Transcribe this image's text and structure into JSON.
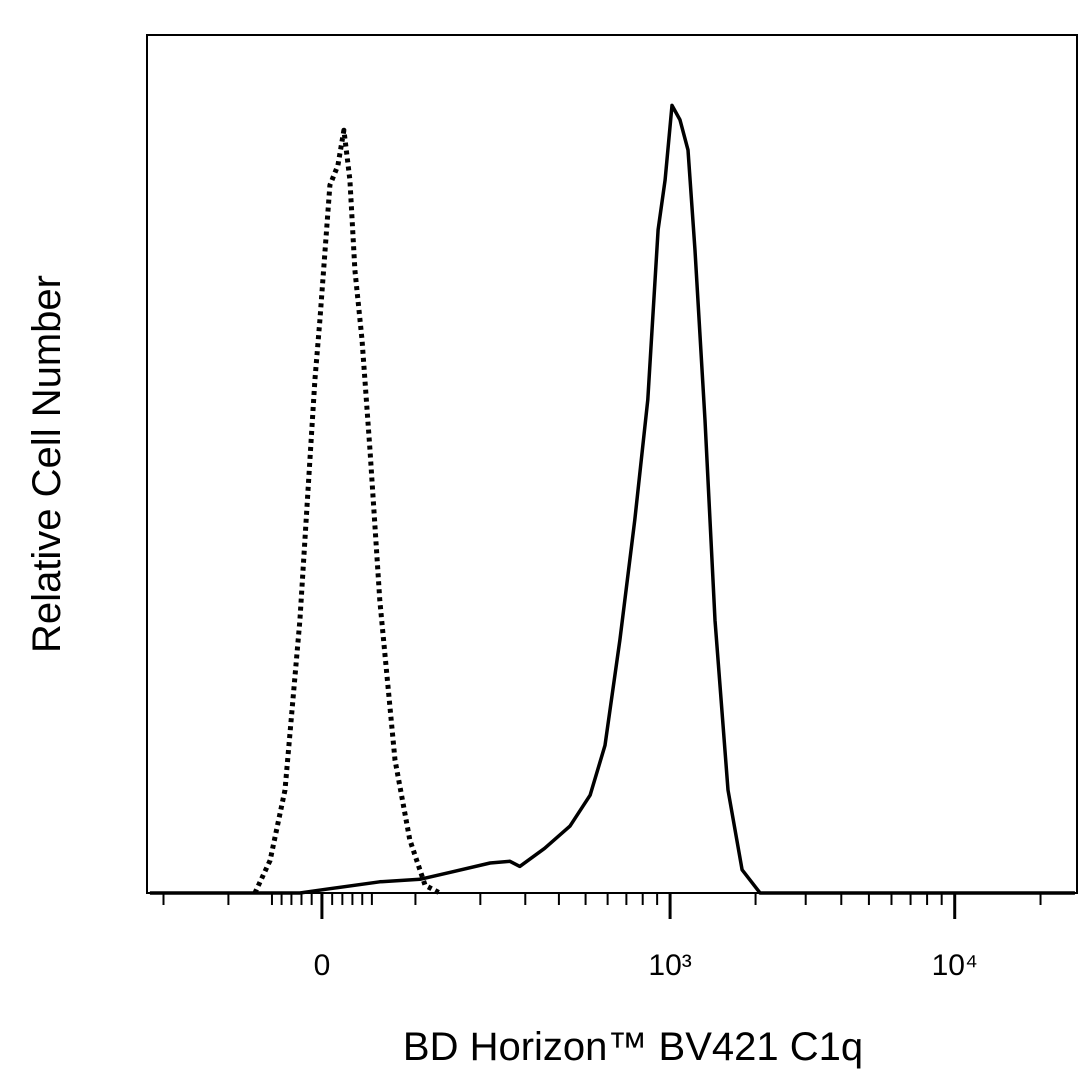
{
  "chart_data": {
    "type": "histogram-overlay",
    "x_label": "BD Horizon™ BV421 C1q",
    "y_label": "Relative Cell Number",
    "xscale": {
      "type": "asinh",
      "cofactor": 120.6
    },
    "xlim": [
      -233,
      26850
    ],
    "xticks": [
      0,
      {
        "value": 1000,
        "label": "10³"
      },
      {
        "value": 10000,
        "label": "10⁴"
      }
    ],
    "xminor_ticks": [
      -200,
      -100,
      -50,
      -40,
      -30,
      -20,
      -10,
      10,
      20,
      30,
      40,
      50,
      100,
      200,
      300,
      400,
      500,
      600,
      700,
      800,
      900,
      2000,
      3000,
      4000,
      5000,
      6000,
      7000,
      8000,
      9000,
      20000
    ],
    "ylim": [
      0,
      100
    ],
    "series": [
      {
        "color": "#000000",
        "style": "dotted",
        "x": [
          -68.5,
          -52,
          -36.5,
          -21.6,
          -6.8,
          -2,
          7.8,
          15.6,
          21.5,
          27.5,
          32.5,
          39.7,
          48,
          58.5,
          75.4,
          93,
          112.5,
          133
        ],
        "values": [
          0,
          3.8,
          12.0,
          31.8,
          59.8,
          66.8,
          82.5,
          84.8,
          88.9,
          83.1,
          72.6,
          64.5,
          51.6,
          34.1,
          15.5,
          6.2,
          0.9,
          0
        ]
      },
      {
        "color": "#000000",
        "style": "solid",
        "x": [
          -227,
          -21.6,
          7.8,
          58.5,
          105.9,
          148,
          219,
          262,
          286,
          354,
          439,
          519,
          587,
          664,
          750,
          834,
          907,
          960,
          1016,
          1084,
          1157,
          1224,
          1328,
          1440,
          1600,
          1793,
          2074,
          26400
        ],
        "values": [
          0,
          0,
          0.5,
          1.3,
          1.6,
          2.4,
          3.5,
          3.7,
          3.1,
          5.2,
          7.8,
          11.4,
          17.2,
          29.5,
          43.5,
          57.5,
          77.3,
          83.1,
          91.8,
          90.1,
          86.6,
          74.9,
          55.1,
          31.8,
          12.0,
          2.7,
          0,
          0
        ]
      }
    ]
  }
}
